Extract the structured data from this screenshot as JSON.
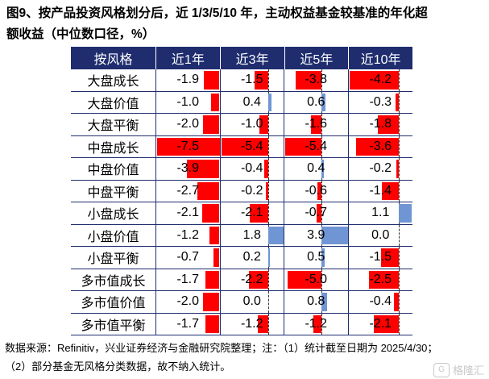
{
  "title": {
    "line1": "图9、按产品投资风格划分后，近 1/3/5/10 年，主动权益基金较基准的年化超",
    "line2": "额收益（中位数口径，%）"
  },
  "table": {
    "headers": [
      "按风格",
      "近1年",
      "近3年",
      "近5年",
      "近10年"
    ],
    "rows": [
      {
        "label": "大盘成长",
        "values": [
          "-1.9",
          "-1.5",
          "-3.8",
          "-4.2"
        ]
      },
      {
        "label": "大盘价值",
        "values": [
          "-1.0",
          "0.4",
          "0.6",
          "-0.3"
        ]
      },
      {
        "label": "大盘平衡",
        "values": [
          "-2.0",
          "-1.0",
          "-1.6",
          "-1.8"
        ]
      },
      {
        "label": "中盘成长",
        "values": [
          "-7.5",
          "-5.4",
          "-5.4",
          "-3.6"
        ]
      },
      {
        "label": "中盘价值",
        "values": [
          "-3.9",
          "-0.4",
          "0.4",
          "-0.2"
        ]
      },
      {
        "label": "中盘平衡",
        "values": [
          "-2.7",
          "-0.2",
          "-0.6",
          "-1.4"
        ]
      },
      {
        "label": "小盘成长",
        "values": [
          "-2.1",
          "-2.1",
          "-0.7",
          "1.1"
        ]
      },
      {
        "label": "小盘价值",
        "values": [
          "-1.2",
          "1.8",
          "3.9",
          "0.0"
        ]
      },
      {
        "label": "小盘平衡",
        "values": [
          "-0.7",
          "0.2",
          "0.5",
          "-1.5"
        ]
      },
      {
        "label": "多市值成长",
        "values": [
          "-1.7",
          "-2.2",
          "-5.0",
          "-2.5"
        ]
      },
      {
        "label": "多市值价值",
        "values": [
          "-2.0",
          "0.0",
          "0.8",
          "-0.4"
        ]
      },
      {
        "label": "多市值平衡",
        "values": [
          "-1.7",
          "-1.2",
          "-1.2",
          "-2.1"
        ]
      }
    ]
  },
  "colors": {
    "header_bg": "#1f2d6f",
    "negative_bar": "#ff0000",
    "positive_bar": "#6f95d4"
  },
  "note": {
    "line1": "数据来源：Refinitiv，兴业证券经济与金融研究院整理；注：（1）统计截至日期为 2025/4/30；",
    "line2": "（2）部分基金无风格分类数据，故不纳入统计。"
  },
  "watermark": {
    "icon": "gelonghui-logo-icon",
    "text": "格隆汇"
  }
}
